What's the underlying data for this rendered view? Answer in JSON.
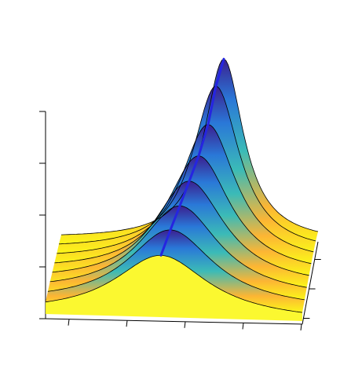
{
  "chart_data": {
    "type": "surface",
    "title": "",
    "xlabel": "",
    "ylabel": "",
    "zlabel": "",
    "grid": false,
    "legend": false,
    "colormap": [
      "#fbf719",
      "#fcb534",
      "#3bbbb7",
      "#2a78d8",
      "#3b1f8f"
    ],
    "colors": {
      "ridge_line": "#2525e0",
      "curves": "#000000",
      "axes": "#000000"
    },
    "curve_peaks": [
      0.24,
      0.31,
      0.38,
      0.46,
      0.55,
      0.68,
      0.86,
      1.0
    ],
    "ridge_x_shift": [
      0.0,
      0.06,
      0.12,
      0.18,
      0.24,
      0.3,
      0.35,
      0.4
    ],
    "z_ticks": 5,
    "x_ticks": 5,
    "y_ticks": 3
  }
}
